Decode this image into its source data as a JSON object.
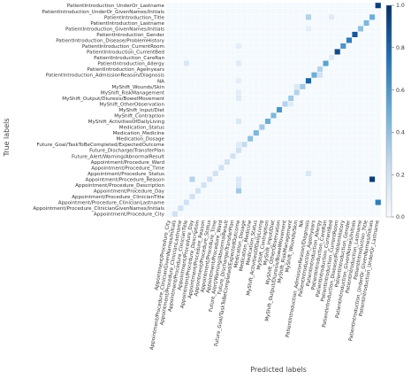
{
  "chart_data": {
    "type": "heatmap",
    "title": "",
    "xlabel": "Predicted labels",
    "ylabel": "True labels",
    "grid": false,
    "colormap": "Blues",
    "colorbar": {
      "range": [
        0.0,
        1.0
      ],
      "ticks": [
        "0.0",
        "0.2",
        "0.4",
        "0.6",
        "0.8",
        "1.0"
      ]
    },
    "categories": [
      "PatientIntroduction_UnderOr_Lastname",
      "PatientIntroduction_UnderOr_GivenNames/Initials",
      "PatientIntroduction_Title",
      "PatientIntroduction_Lastname",
      "PatientIntroduction_GivenNames/Initials",
      "PatientIntroduction_Gender",
      "PatientIntroduction_Disease/ProblemHistory",
      "PatientIntroduction_CurrentRoom",
      "PatientIntroduction_CurrentBed",
      "PatientIntroduction_CareRan",
      "PatientIntroduction_Allergy",
      "PatientIntroduction_AgeInyears",
      "PatientIntroduction_AdmissionReason/Diagnosis",
      "NA",
      "MyShift_Wounds/Skin",
      "MyShift_RiskManagement",
      "MyShift_Output/Diuresis/BowelMovement",
      "MyShift_OtherObservation",
      "MyShift_Input/Diet",
      "MyShift_Contraption",
      "MyShift_ActivitiesOfDailyLiving",
      "Medication_Status",
      "Medication_Medicine",
      "Medication_Dosage",
      "Future_Goal/TaskToBeCompleted/ExpectedOutcome",
      "Future_Discharge/TransferPlan",
      "Future_Alert/Warning/AbnormalResult",
      "Appointment/Procedure_Ward",
      "Appointment/Procedure_Time",
      "Appointment/Procedure_Status",
      "Appointment/Procedure_Reason",
      "Appointment/Procedure_Description",
      "Appointment/Procedure_Day",
      "Appointment/Procedure_ClinicianTitle",
      "Appointment/Procedure_ClinicianLastname",
      "Appointment/Procedure_ClinicianGivenNames/Initials",
      "Appointment/Procedure_City"
    ],
    "cells": [
      {
        "row": 0,
        "col": 36,
        "value": 0.95
      },
      {
        "row": 2,
        "col": 35,
        "value": 0.5
      },
      {
        "row": 2,
        "col": 24,
        "value": 0.3
      },
      {
        "row": 2,
        "col": 28,
        "value": 0.12
      },
      {
        "row": 3,
        "col": 34,
        "value": 0.45
      },
      {
        "row": 4,
        "col": 33,
        "value": 0.4
      },
      {
        "row": 4,
        "col": 24,
        "value": 0.1
      },
      {
        "row": 5,
        "col": 32,
        "value": 0.85
      },
      {
        "row": 6,
        "col": 31,
        "value": 0.7
      },
      {
        "row": 7,
        "col": 30,
        "value": 0.6
      },
      {
        "row": 7,
        "col": 12,
        "value": 0.1
      },
      {
        "row": 8,
        "col": 29,
        "value": 0.9
      },
      {
        "row": 9,
        "col": 28,
        "value": 0.12
      },
      {
        "row": 10,
        "col": 27,
        "value": 0.55
      },
      {
        "row": 10,
        "col": 3,
        "value": 0.15
      },
      {
        "row": 10,
        "col": 12,
        "value": 0.12
      },
      {
        "row": 11,
        "col": 26,
        "value": 0.3
      },
      {
        "row": 12,
        "col": 25,
        "value": 0.5
      },
      {
        "row": 12,
        "col": 26,
        "value": 0.2
      },
      {
        "row": 13,
        "col": 24,
        "value": 0.8
      },
      {
        "row": 13,
        "col": 12,
        "value": 0.1
      },
      {
        "row": 14,
        "col": 23,
        "value": 0.35
      },
      {
        "row": 14,
        "col": 22,
        "value": 0.15
      },
      {
        "row": 15,
        "col": 22,
        "value": 0.3
      },
      {
        "row": 15,
        "col": 12,
        "value": 0.1
      },
      {
        "row": 16,
        "col": 21,
        "value": 0.35
      },
      {
        "row": 16,
        "col": 12,
        "value": 0.12
      },
      {
        "row": 17,
        "col": 20,
        "value": 0.3
      },
      {
        "row": 17,
        "col": 21,
        "value": 0.12
      },
      {
        "row": 18,
        "col": 19,
        "value": 0.6
      },
      {
        "row": 19,
        "col": 18,
        "value": 0.45
      },
      {
        "row": 20,
        "col": 17,
        "value": 0.5
      },
      {
        "row": 20,
        "col": 12,
        "value": 0.15
      },
      {
        "row": 21,
        "col": 16,
        "value": 0.35
      },
      {
        "row": 22,
        "col": 15,
        "value": 0.45
      },
      {
        "row": 23,
        "col": 14,
        "value": 0.4
      },
      {
        "row": 24,
        "col": 13,
        "value": 0.25
      },
      {
        "row": 24,
        "col": 12,
        "value": 0.12
      },
      {
        "row": 25,
        "col": 12,
        "value": 0.2
      },
      {
        "row": 26,
        "col": 11,
        "value": 0.2
      },
      {
        "row": 27,
        "col": 10,
        "value": 0.2
      },
      {
        "row": 28,
        "col": 9,
        "value": 0.2
      },
      {
        "row": 29,
        "col": 8,
        "value": 0.2
      },
      {
        "row": 29,
        "col": 24,
        "value": 0.15
      },
      {
        "row": 30,
        "col": 7,
        "value": 0.2
      },
      {
        "row": 30,
        "col": 12,
        "value": 0.15
      },
      {
        "row": 30,
        "col": 4,
        "value": 0.3
      },
      {
        "row": 30,
        "col": 35,
        "value": 0.95
      },
      {
        "row": 31,
        "col": 6,
        "value": 0.2
      },
      {
        "row": 31,
        "col": 12,
        "value": 0.15
      },
      {
        "row": 32,
        "col": 5,
        "value": 0.2
      },
      {
        "row": 32,
        "col": 12,
        "value": 0.35
      },
      {
        "row": 33,
        "col": 4,
        "value": 0.2
      },
      {
        "row": 34,
        "col": 3,
        "value": 0.2
      },
      {
        "row": 34,
        "col": 36,
        "value": 0.7
      },
      {
        "row": 35,
        "col": 2,
        "value": 0.2
      },
      {
        "row": 36,
        "col": 1,
        "value": 0.2
      }
    ]
  }
}
